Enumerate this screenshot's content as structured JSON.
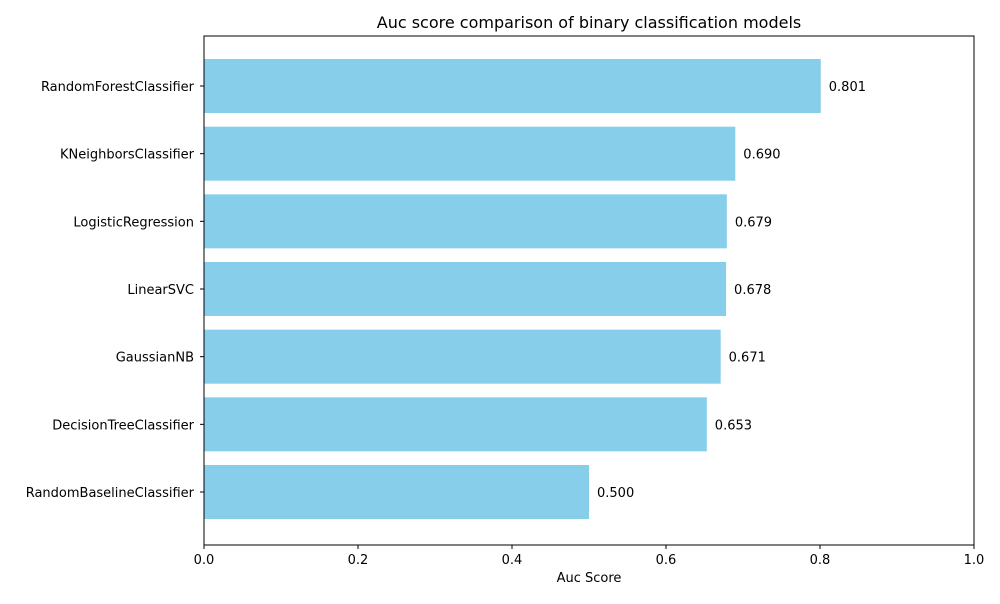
{
  "chart_data": {
    "type": "bar",
    "orientation": "horizontal",
    "title": "Auc score comparison of binary classification models",
    "xlabel": "Auc Score",
    "ylabel": "",
    "xlim": [
      0,
      1.0
    ],
    "x_ticks": [
      "0.0",
      "0.2",
      "0.4",
      "0.6",
      "0.8",
      "1.0"
    ],
    "categories": [
      "RandomForestClassifier",
      "KNeighborsClassifier",
      "LogisticRegression",
      "LinearSVC",
      "GaussianNB",
      "DecisionTreeClassifier",
      "RandomBaselineClassifier"
    ],
    "values": [
      0.801,
      0.69,
      0.679,
      0.678,
      0.671,
      0.653,
      0.5
    ],
    "value_labels": [
      "0.801",
      "0.690",
      "0.679",
      "0.678",
      "0.671",
      "0.653",
      "0.500"
    ],
    "bar_color": "#87CEEB",
    "grid": false,
    "legend": "none"
  }
}
